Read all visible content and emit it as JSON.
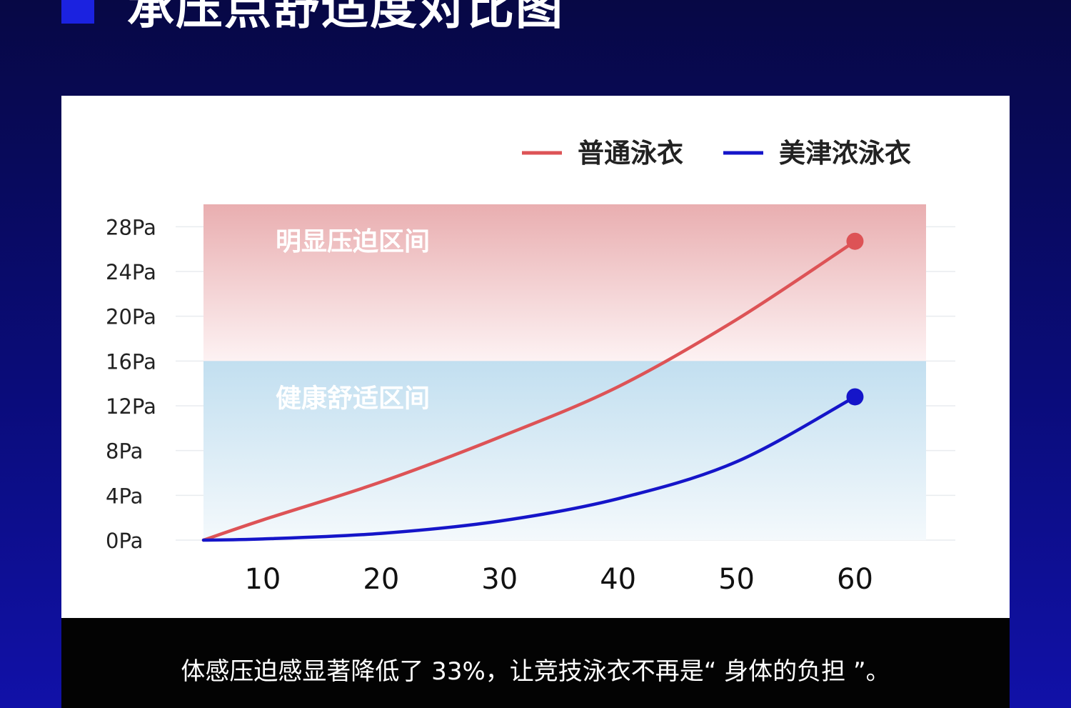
{
  "page": {
    "title": "承压点舒适度对比图",
    "caption": "体感压迫感显著降低了 33%，让竞技泳衣不再是“ 身体的负担 ”。"
  },
  "chart_data": {
    "type": "line",
    "title": "",
    "xlabel": "",
    "ylabel": "",
    "x_ticks": [
      10,
      20,
      30,
      40,
      50,
      60
    ],
    "y_ticks": [
      "0Pa",
      "4Pa",
      "8Pa",
      "12Pa",
      "16Pa",
      "20Pa",
      "24Pa",
      "28Pa"
    ],
    "xlim": [
      5,
      66
    ],
    "ylim": [
      0,
      30
    ],
    "legend_position": "top-right",
    "zones": [
      {
        "label": "明显压迫区间",
        "from": 16,
        "to": 30,
        "color": "#e9aeb0"
      },
      {
        "label": "健康舒适区间",
        "from": 0,
        "to": 16,
        "color": "#c2dff0"
      }
    ],
    "series": [
      {
        "name": "普通泳衣",
        "color": "#dd5356",
        "x": [
          5,
          10,
          20,
          30,
          40,
          50,
          60
        ],
        "y": [
          0,
          1.8,
          5.2,
          9.2,
          13.7,
          19.7,
          26.7
        ]
      },
      {
        "name": "美津浓泳衣",
        "color": "#1515c9",
        "x": [
          5,
          10,
          20,
          30,
          40,
          50,
          60
        ],
        "y": [
          0,
          0.1,
          0.6,
          1.7,
          3.7,
          7.0,
          12.8
        ]
      }
    ]
  }
}
